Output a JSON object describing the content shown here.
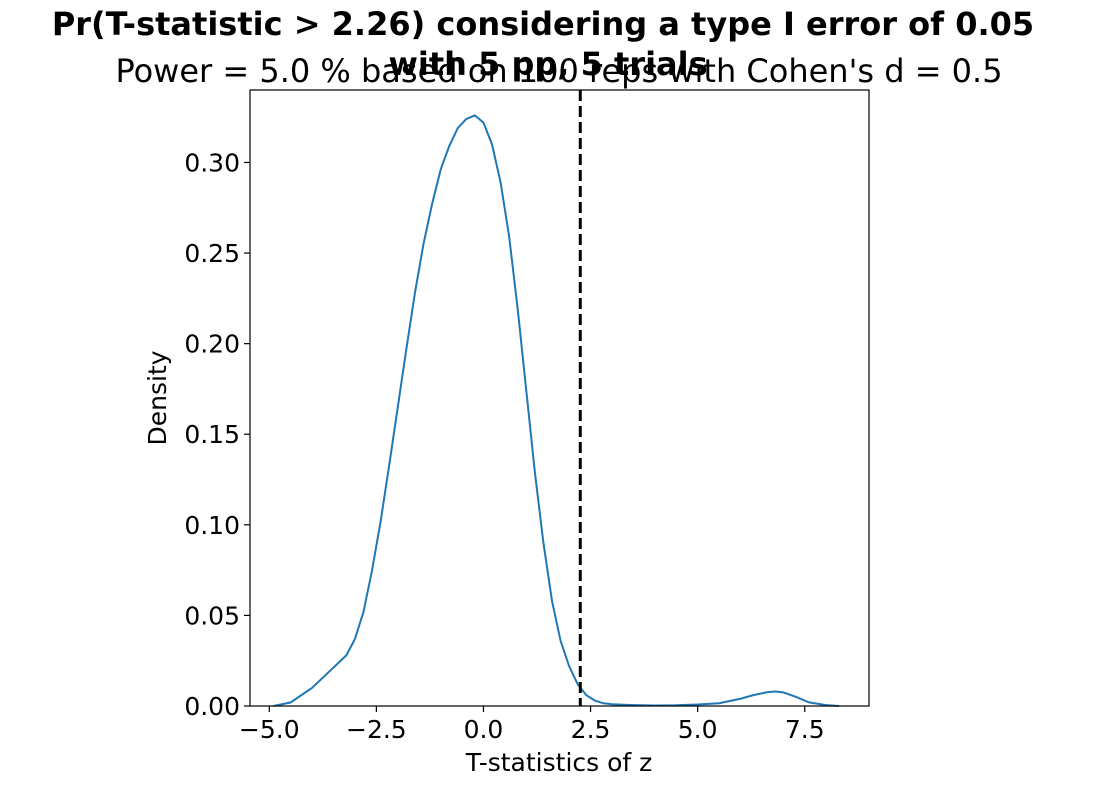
{
  "chart_data": {
    "type": "line",
    "title": "Pr(T-statistic > 2.26) considering a type I error of 0.05",
    "title_line2": "with 5 pp, 5 trials",
    "subtitle": "Power = 5.0 % based on 100 reps with Cohen's d = 0.5",
    "xlabel": "T-statistics of z",
    "ylabel": "Density",
    "xlim": [
      -5.45,
      9.0
    ],
    "ylim": [
      0.0,
      0.34
    ],
    "xticks": [
      -5.0,
      -2.5,
      0.0,
      2.5,
      5.0,
      7.5
    ],
    "xtick_labels": [
      "−5.0",
      "−2.5",
      "0.0",
      "2.5",
      "5.0",
      "7.5"
    ],
    "yticks": [
      0.0,
      0.05,
      0.1,
      0.15,
      0.2,
      0.25,
      0.3
    ],
    "ytick_labels": [
      "0.00",
      "0.05",
      "0.10",
      "0.15",
      "0.20",
      "0.25",
      "0.30"
    ],
    "grid": false,
    "critical_value": 2.26,
    "series": [
      {
        "color": "#1f77b4",
        "x": [
          -4.9,
          -4.5,
          -4.0,
          -3.6,
          -3.2,
          -3.0,
          -2.8,
          -2.6,
          -2.4,
          -2.2,
          -2.0,
          -1.8,
          -1.6,
          -1.4,
          -1.2,
          -1.0,
          -0.8,
          -0.6,
          -0.4,
          -0.2,
          0.0,
          0.2,
          0.4,
          0.6,
          0.8,
          1.0,
          1.2,
          1.4,
          1.6,
          1.8,
          2.0,
          2.2,
          2.4,
          2.6,
          2.8,
          3.0,
          3.5,
          4.0,
          4.5,
          5.0,
          5.5,
          6.0,
          6.3,
          6.6,
          6.8,
          7.0,
          7.3,
          7.6,
          8.0,
          8.3
        ],
        "y": [
          0.0,
          0.002,
          0.01,
          0.019,
          0.028,
          0.037,
          0.052,
          0.075,
          0.102,
          0.133,
          0.165,
          0.197,
          0.228,
          0.255,
          0.277,
          0.296,
          0.309,
          0.319,
          0.324,
          0.326,
          0.322,
          0.31,
          0.289,
          0.259,
          0.219,
          0.174,
          0.129,
          0.09,
          0.058,
          0.036,
          0.022,
          0.012,
          0.006,
          0.003,
          0.0015,
          0.001,
          0.0005,
          0.0003,
          0.0004,
          0.0008,
          0.0015,
          0.004,
          0.006,
          0.0075,
          0.008,
          0.0075,
          0.005,
          0.002,
          0.0005,
          0.0
        ]
      }
    ]
  }
}
